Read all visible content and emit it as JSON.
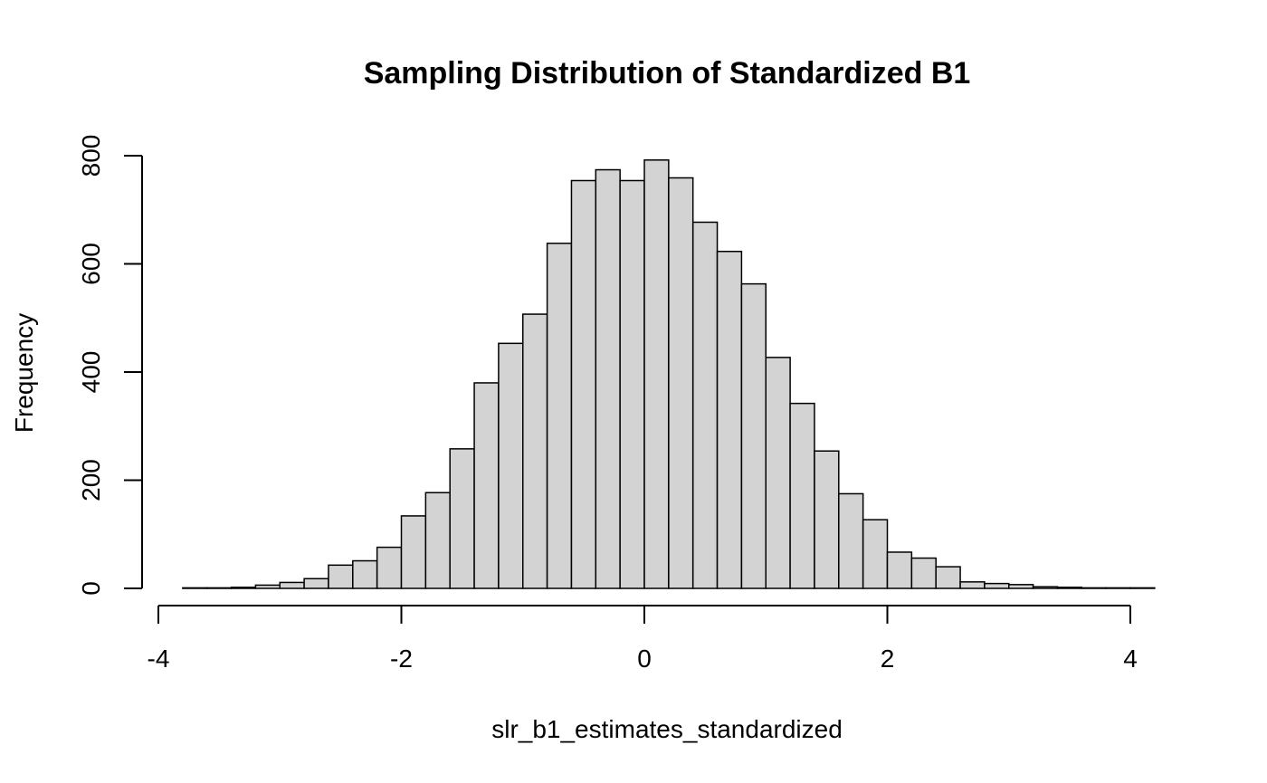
{
  "chart_data": {
    "type": "bar",
    "title": "Sampling Distribution of Standardized B1",
    "xlabel": "slr_b1_estimates_standardized",
    "ylabel": "Frequency",
    "xlim": [
      -4,
      4.2
    ],
    "ylim": [
      0,
      800
    ],
    "x_ticks": [
      "-4",
      "-2",
      "0",
      "2",
      "4"
    ],
    "y_ticks": [
      "0",
      "200",
      "400",
      "600",
      "800"
    ],
    "bin_width": 0.2,
    "bin_start": -3.8,
    "bin_end": 4.2,
    "values": [
      1,
      1,
      2,
      6,
      11,
      18,
      43,
      51,
      76,
      134,
      177,
      258,
      380,
      453,
      507,
      638,
      754,
      774,
      754,
      792,
      759,
      677,
      623,
      563,
      427,
      342,
      254,
      175,
      127,
      67,
      56,
      40,
      12,
      9,
      7,
      3,
      2,
      1,
      1,
      1
    ],
    "bar_color": "#d3d3d3",
    "edge_color": "#000000",
    "grid": false,
    "legend": "none"
  }
}
